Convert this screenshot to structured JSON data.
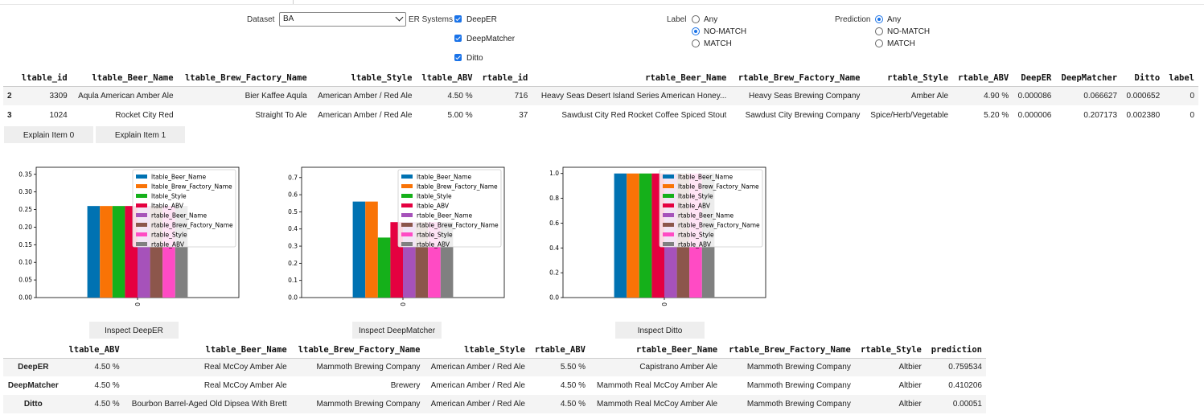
{
  "controls": {
    "dataset_label": "Dataset",
    "dataset_value": "BA",
    "er_label": "ER Systems",
    "systems": [
      {
        "label": "DeepER",
        "checked": true
      },
      {
        "label": "DeepMatcher",
        "checked": true
      },
      {
        "label": "Ditto",
        "checked": true
      }
    ],
    "label_label": "Label",
    "label_options": [
      "Any",
      "NO-MATCH",
      "MATCH"
    ],
    "label_selected": "Any",
    "prediction_label": "Prediction",
    "prediction_options": [
      "Any",
      "NO-MATCH",
      "MATCH"
    ],
    "prediction_selected": "Any"
  },
  "table1": {
    "headers": [
      "",
      "ltable_id",
      "ltable_Beer_Name",
      "ltable_Brew_Factory_Name",
      "ltable_Style",
      "ltable_ABV",
      "rtable_id",
      "rtable_Beer_Name",
      "rtable_Brew_Factory_Name",
      "rtable_Style",
      "rtable_ABV",
      "DeepER",
      "DeepMatcher",
      "Ditto",
      "label"
    ],
    "rows": [
      [
        "2",
        "3309",
        "Aqula American Amber Ale",
        "Bier Kaffee Aqula",
        "American Amber / Red Ale",
        "4.50 %",
        "716",
        "Heavy Seas Desert Island Series American Honey...",
        "Heavy Seas Brewing Company",
        "Amber Ale",
        "4.90 %",
        "0.000086",
        "0.066627",
        "0.000652",
        "0"
      ],
      [
        "3",
        "1024",
        "Rocket City Red",
        "Straight To Ale",
        "American Amber / Red Ale",
        "5.00 %",
        "37",
        "Sawdust City Red Rocket Coffee Spiced Stout",
        "Sawdust City Brewing Company",
        "Spice/Herb/Vegetable",
        "5.20 %",
        "0.000006",
        "0.207173",
        "0.002380",
        "0"
      ]
    ]
  },
  "explain_buttons": [
    "Explain Item 0",
    "Explain Item 1"
  ],
  "legend": [
    "ltable_Beer_Name",
    "ltable_Brew_Factory_Name",
    "ltable_Style",
    "ltable_ABV",
    "rtable_Beer_Name",
    "rtable_Brew_Factory_Name",
    "rtable_Style",
    "rtable_ABV"
  ],
  "colors": [
    "#0072b2",
    "#f97306",
    "#15b01a",
    "#e50040",
    "#a652ba",
    "#8c564b",
    "#ff4bc4",
    "#808080"
  ],
  "chart_data": [
    {
      "type": "bar",
      "categories": [
        "0"
      ],
      "ylim": [
        0,
        0.37
      ],
      "yticks": [
        "0.00",
        "0.05",
        "0.10",
        "0.15",
        "0.20",
        "0.25",
        "0.30",
        "0.35"
      ],
      "series": [
        {
          "name": "ltable_Beer_Name",
          "values": [
            0.26
          ]
        },
        {
          "name": "ltable_Brew_Factory_Name",
          "values": [
            0.26
          ]
        },
        {
          "name": "ltable_Style",
          "values": [
            0.26
          ]
        },
        {
          "name": "ltable_ABV",
          "values": [
            0.26
          ]
        },
        {
          "name": "rtable_Beer_Name",
          "values": [
            0.26
          ]
        },
        {
          "name": "rtable_Brew_Factory_Name",
          "values": [
            0.26
          ]
        },
        {
          "name": "rtable_Style",
          "values": [
            0.26
          ]
        },
        {
          "name": "rtable_ABV",
          "values": [
            0.26
          ]
        }
      ],
      "legend": "top-right"
    },
    {
      "type": "bar",
      "categories": [
        "0"
      ],
      "ylim": [
        0,
        0.76
      ],
      "yticks": [
        "0.0",
        "0.1",
        "0.2",
        "0.3",
        "0.4",
        "0.5",
        "0.6",
        "0.7"
      ],
      "series": [
        {
          "name": "ltable_Beer_Name",
          "values": [
            0.56
          ]
        },
        {
          "name": "ltable_Brew_Factory_Name",
          "values": [
            0.56
          ]
        },
        {
          "name": "ltable_Style",
          "values": [
            0.35
          ]
        },
        {
          "name": "ltable_ABV",
          "values": [
            0.44
          ]
        },
        {
          "name": "rtable_Beer_Name",
          "values": [
            0.44
          ]
        },
        {
          "name": "rtable_Brew_Factory_Name",
          "values": [
            0.44
          ]
        },
        {
          "name": "rtable_Style",
          "values": [
            0.44
          ]
        },
        {
          "name": "rtable_ABV",
          "values": [
            0.44
          ]
        }
      ],
      "legend": "top-right"
    },
    {
      "type": "bar",
      "categories": [
        "0"
      ],
      "ylim": [
        0,
        1.05
      ],
      "yticks": [
        "0.0",
        "0.2",
        "0.4",
        "0.6",
        "0.8",
        "1.0"
      ],
      "series": [
        {
          "name": "ltable_Beer_Name",
          "values": [
            1.0
          ]
        },
        {
          "name": "ltable_Brew_Factory_Name",
          "values": [
            1.0
          ]
        },
        {
          "name": "ltable_Style",
          "values": [
            1.0
          ]
        },
        {
          "name": "ltable_ABV",
          "values": [
            1.0
          ]
        },
        {
          "name": "rtable_Beer_Name",
          "values": [
            1.0
          ]
        },
        {
          "name": "rtable_Brew_Factory_Name",
          "values": [
            1.0
          ]
        },
        {
          "name": "rtable_Style",
          "values": [
            1.0
          ]
        },
        {
          "name": "rtable_ABV",
          "values": [
            1.0
          ]
        }
      ],
      "legend": "top-right"
    }
  ],
  "inspect_buttons": [
    "Inspect DeepER",
    "Inspect DeepMatcher",
    "Inspect Ditto"
  ],
  "table2": {
    "headers": [
      "",
      "ltable_ABV",
      "ltable_Beer_Name",
      "ltable_Brew_Factory_Name",
      "ltable_Style",
      "rtable_ABV",
      "rtable_Beer_Name",
      "rtable_Brew_Factory_Name",
      "rtable_Style",
      "prediction"
    ],
    "rows": [
      [
        "DeepER",
        "4.50 %",
        "Real McCoy Amber Ale",
        "Mammoth Brewing Company",
        "American Amber / Red Ale",
        "5.50 %",
        "Capistrano Amber Ale",
        "Mammoth Brewing Company",
        "Altbier",
        "0.759534"
      ],
      [
        "DeepMatcher",
        "4.50 %",
        "Real McCoy Amber Ale",
        "Brewery",
        "American Amber / Red Ale",
        "4.50 %",
        "Mammoth Real McCoy Amber Ale",
        "Mammoth Brewing Company",
        "Altbier",
        "0.410206"
      ],
      [
        "Ditto",
        "4.50 %",
        "Bourbon Barrel-Aged Old Dipsea With Brett",
        "Mammoth Brewing Company",
        "American Amber / Red Ale",
        "4.50 %",
        "Mammoth Real McCoy Amber Ale",
        "Mammoth Brewing Company",
        "Altbier",
        "0.00051"
      ]
    ]
  }
}
